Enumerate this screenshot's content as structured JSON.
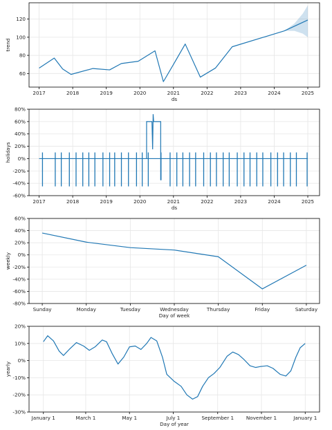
{
  "colors": {
    "line": "#1f77b4",
    "band": "#1f77b4",
    "grid": "#e6e6e6",
    "axis": "#000000"
  },
  "chart_data": [
    {
      "type": "line",
      "name": "trend",
      "xlabel": "ds",
      "ylabel": "trend",
      "xlim": [
        2016.7,
        2025.35
      ],
      "ylim": [
        45,
        138
      ],
      "grid": true,
      "x_ticks": [
        2017,
        2018,
        2019,
        2020,
        2021,
        2022,
        2023,
        2024,
        2025
      ],
      "x_tick_labels": [
        "2017",
        "2018",
        "2019",
        "2020",
        "2021",
        "2022",
        "2023",
        "2024",
        "2025"
      ],
      "y_ticks": [
        60,
        80,
        100,
        120
      ],
      "y_tick_labels": [
        "60",
        "80",
        "100",
        "120"
      ],
      "x": [
        2017.0,
        2017.45,
        2017.7,
        2017.95,
        2018.6,
        2019.1,
        2019.45,
        2019.95,
        2020.45,
        2020.7,
        2021.0,
        2021.35,
        2021.8,
        2022.25,
        2022.75,
        2024.3,
        2025.0
      ],
      "y": [
        66,
        77,
        65,
        59,
        65.5,
        64,
        71,
        73.5,
        85,
        51,
        70,
        92.5,
        56,
        66,
        89.5,
        107,
        119
      ],
      "uncertainty": {
        "x": [
          2024.3,
          2024.6,
          2024.85,
          2025.0
        ],
        "lower": [
          107,
          107,
          104,
          100
        ],
        "upper": [
          107,
          115,
          126,
          135
        ]
      }
    },
    {
      "type": "line",
      "name": "holidays",
      "xlabel": "ds",
      "ylabel": "holidays",
      "xlim": [
        2016.7,
        2025.35
      ],
      "ylim": [
        -0.6,
        0.8
      ],
      "grid": true,
      "x_ticks": [
        2017,
        2018,
        2019,
        2020,
        2021,
        2022,
        2023,
        2024,
        2025
      ],
      "x_tick_labels": [
        "2017",
        "2018",
        "2019",
        "2020",
        "2021",
        "2022",
        "2023",
        "2024",
        "2025"
      ],
      "y_ticks": [
        -0.6,
        -0.4,
        -0.2,
        0,
        0.2,
        0.4,
        0.6,
        0.8
      ],
      "y_tick_labels": [
        "-60%",
        "-40%",
        "-20%",
        "0%",
        "20%",
        "40%",
        "60%",
        "80%"
      ],
      "spikes": [
        {
          "x": 2017.1,
          "low": -0.45,
          "high": 0.1
        },
        {
          "x": 2017.48,
          "low": -0.45,
          "high": 0.1
        },
        {
          "x": 2017.66,
          "low": -0.45,
          "high": 0.1
        },
        {
          "x": 2017.9,
          "low": -0.45,
          "high": 0.1
        },
        {
          "x": 2018.1,
          "low": -0.45,
          "high": 0.1
        },
        {
          "x": 2018.3,
          "low": -0.45,
          "high": 0.1
        },
        {
          "x": 2018.48,
          "low": -0.45,
          "high": 0.1
        },
        {
          "x": 2018.66,
          "low": -0.45,
          "high": 0.1
        },
        {
          "x": 2018.9,
          "low": -0.45,
          "high": 0.1
        },
        {
          "x": 2019.1,
          "low": -0.45,
          "high": 0.1
        },
        {
          "x": 2019.25,
          "low": -0.45,
          "high": 0.1
        },
        {
          "x": 2019.45,
          "low": -0.45,
          "high": 0.1
        },
        {
          "x": 2019.66,
          "low": -0.45,
          "high": 0.1
        },
        {
          "x": 2019.9,
          "low": -0.45,
          "high": 0.1
        },
        {
          "x": 2020.07,
          "low": -0.45,
          "high": 0.1
        },
        {
          "x": 2020.25,
          "low": -0.45,
          "high": 0.1
        },
        {
          "x": 2020.63,
          "low": -0.35,
          "high": 0.1
        },
        {
          "x": 2020.9,
          "low": -0.45,
          "high": 0.1
        },
        {
          "x": 2021.1,
          "low": -0.45,
          "high": 0.1
        },
        {
          "x": 2021.28,
          "low": -0.45,
          "high": 0.1
        },
        {
          "x": 2021.48,
          "low": -0.45,
          "high": 0.1
        },
        {
          "x": 2021.66,
          "low": -0.45,
          "high": 0.1
        },
        {
          "x": 2021.9,
          "low": -0.45,
          "high": 0.1
        },
        {
          "x": 2022.1,
          "low": -0.45,
          "high": 0.1
        },
        {
          "x": 2022.28,
          "low": -0.45,
          "high": 0.1
        },
        {
          "x": 2022.48,
          "low": -0.45,
          "high": 0.1
        },
        {
          "x": 2022.66,
          "low": -0.45,
          "high": 0.1
        },
        {
          "x": 2022.9,
          "low": -0.45,
          "high": 0.1
        },
        {
          "x": 2023.1,
          "low": -0.45,
          "high": 0.1
        },
        {
          "x": 2023.28,
          "low": -0.45,
          "high": 0.1
        },
        {
          "x": 2023.48,
          "low": -0.45,
          "high": 0.1
        },
        {
          "x": 2023.66,
          "low": -0.45,
          "high": 0.1
        },
        {
          "x": 2023.9,
          "low": -0.45,
          "high": 0.1
        },
        {
          "x": 2024.1,
          "low": -0.45,
          "high": 0.1
        },
        {
          "x": 2024.28,
          "low": -0.45,
          "high": 0.1
        },
        {
          "x": 2024.48,
          "low": -0.45,
          "high": 0.1
        },
        {
          "x": 2024.66,
          "low": -0.45,
          "high": 0.1
        },
        {
          "x": 2024.98,
          "low": -0.45,
          "high": 0.1
        }
      ],
      "block": {
        "x": [
          2020.2,
          2020.62
        ],
        "y": 0.6,
        "dip_x": 2020.38,
        "dip_y": 0.15,
        "peak_y": 0.72
      }
    },
    {
      "type": "line",
      "name": "weekly",
      "xlabel": "Day of week",
      "ylabel": "weekly",
      "xlim": [
        -0.3,
        6.3
      ],
      "ylim": [
        -0.8,
        0.6
      ],
      "grid": true,
      "x_ticks": [
        0,
        1,
        2,
        3,
        4,
        5,
        6
      ],
      "x_tick_labels": [
        "Sunday",
        "Monday",
        "Tuesday",
        "Wednesday",
        "Thursday",
        "Friday",
        "Saturday"
      ],
      "y_ticks": [
        -0.8,
        -0.6,
        -0.4,
        -0.2,
        0,
        0.2,
        0.4,
        0.6
      ],
      "y_tick_labels": [
        "-80%",
        "-60%",
        "-40%",
        "-20%",
        "0%",
        "20%",
        "40%",
        "60%"
      ],
      "x": [
        0,
        1,
        2,
        3,
        4,
        5,
        6
      ],
      "y": [
        0.36,
        0.21,
        0.12,
        0.08,
        -0.03,
        -0.56,
        -0.17
      ]
    },
    {
      "type": "line",
      "name": "yearly",
      "xlabel": "Day of year",
      "ylabel": "yearly",
      "xlim": [
        -20,
        385
      ],
      "ylim": [
        -0.3,
        0.2
      ],
      "grid": true,
      "x_ticks": [
        0,
        59,
        120,
        181,
        243,
        304,
        365
      ],
      "x_tick_labels": [
        "January 1",
        "March 1",
        "May 1",
        "July 1",
        "September 1",
        "November 1",
        "January 1"
      ],
      "y_ticks": [
        -0.3,
        -0.2,
        -0.1,
        0,
        0.1,
        0.2
      ],
      "y_tick_labels": [
        "-30%",
        "-20%",
        "-10%",
        "0%",
        "10%",
        "20%"
      ],
      "x": [
        0,
        6,
        14,
        22,
        28,
        36,
        46,
        56,
        64,
        72,
        82,
        88,
        96,
        104,
        112,
        120,
        128,
        136,
        144,
        150,
        158,
        166,
        172,
        182,
        192,
        200,
        208,
        215,
        222,
        230,
        238,
        246,
        256,
        264,
        272,
        280,
        288,
        296,
        302,
        312,
        320,
        330,
        338,
        345,
        352,
        358,
        365
      ],
      "y": [
        0.11,
        0.145,
        0.115,
        0.055,
        0.03,
        0.065,
        0.105,
        0.085,
        0.06,
        0.08,
        0.12,
        0.11,
        0.04,
        -0.02,
        0.02,
        0.08,
        0.085,
        0.065,
        0.1,
        0.135,
        0.115,
        0.02,
        -0.08,
        -0.12,
        -0.15,
        -0.2,
        -0.225,
        -0.21,
        -0.15,
        -0.1,
        -0.075,
        -0.04,
        0.025,
        0.05,
        0.035,
        0.005,
        -0.03,
        -0.04,
        -0.035,
        -0.03,
        -0.045,
        -0.08,
        -0.09,
        -0.06,
        0.02,
        0.075,
        0.1
      ]
    }
  ]
}
